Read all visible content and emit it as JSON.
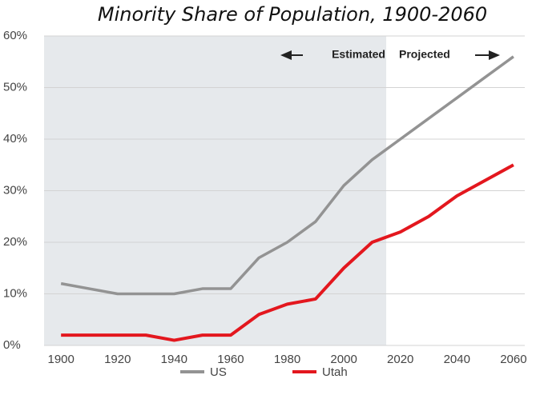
{
  "chart_data": {
    "type": "line",
    "title": "Minority Share of Population, 1900-2060",
    "x": [
      1900,
      1910,
      1920,
      1930,
      1940,
      1950,
      1960,
      1970,
      1980,
      1990,
      2000,
      2010,
      2020,
      2030,
      2040,
      2050,
      2060
    ],
    "series": [
      {
        "name": "US",
        "color": "#939393",
        "values": [
          12,
          11,
          10,
          10,
          10,
          11,
          11,
          17,
          20,
          24,
          31,
          36,
          40,
          44,
          48,
          52,
          56
        ]
      },
      {
        "name": "Utah",
        "color": "#e3171e",
        "values": [
          2,
          2,
          2,
          2,
          1,
          2,
          2,
          6,
          8,
          9,
          15,
          20,
          22,
          25,
          29,
          32,
          35
        ]
      }
    ],
    "xlim": [
      1894,
      2064
    ],
    "xticks": [
      1900,
      1920,
      1940,
      1960,
      1980,
      2000,
      2020,
      2040,
      2060
    ],
    "ylim": [
      0,
      60
    ],
    "yticks": [
      {
        "value": 0,
        "label": "0%"
      },
      {
        "value": 10,
        "label": "10%"
      },
      {
        "value": 20,
        "label": "20%"
      },
      {
        "value": 30,
        "label": "30%"
      },
      {
        "value": 40,
        "label": "40%"
      },
      {
        "value": 50,
        "label": "50%"
      },
      {
        "value": 60,
        "label": "60%"
      }
    ],
    "grid": true,
    "shaded_region": [
      1894,
      2015
    ],
    "annotations": [
      "Estimated",
      "Projected"
    ],
    "legend": "bottom"
  }
}
